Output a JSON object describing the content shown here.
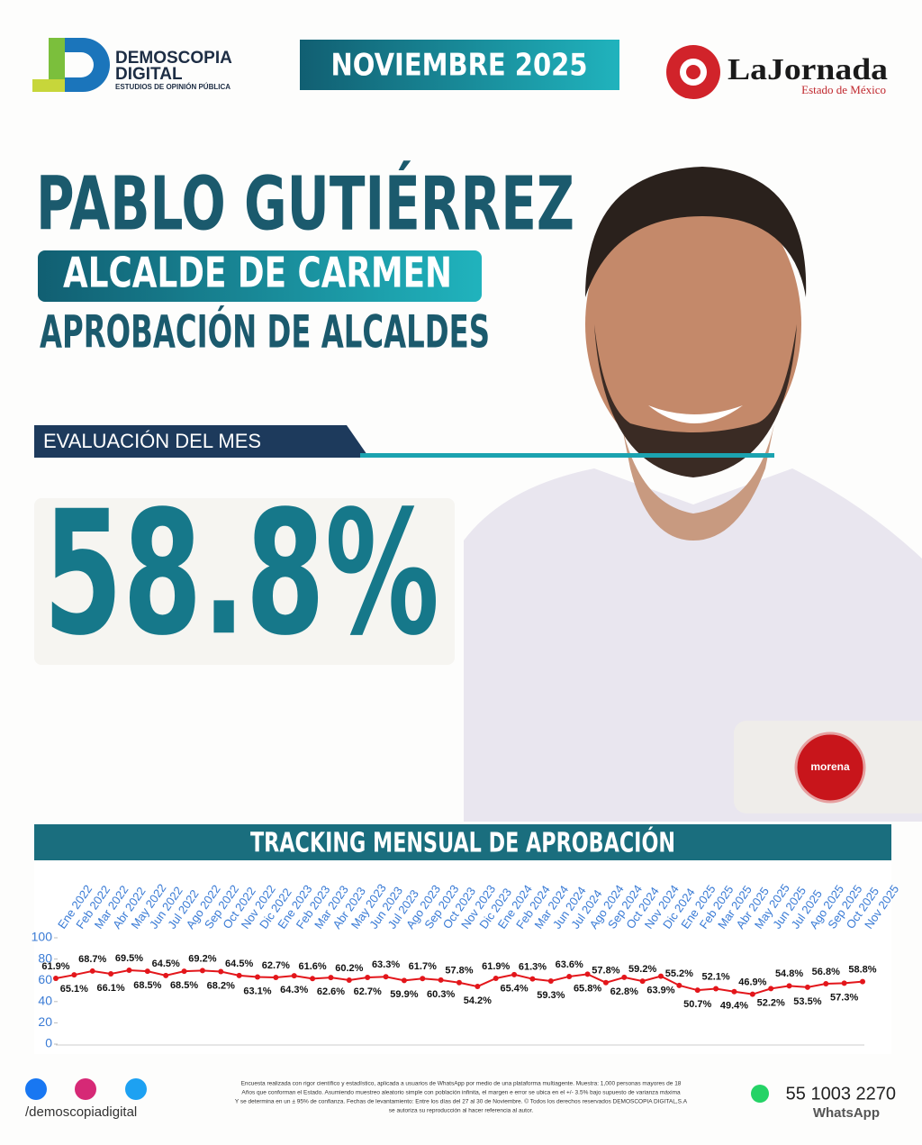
{
  "header": {
    "brand": "DEMOSCOPIA",
    "brand2": "DIGITAL",
    "brand_sub": "ESTUDIOS DE OPINIÓN PÚBLICA",
    "month": "NOVIEMBRE 2025",
    "partner": "LaJornada",
    "partner_sub": "Estado de México"
  },
  "hero": {
    "name": "PABLO GUTIÉRREZ",
    "role": "ALCALDE DE CARMEN",
    "topic": "APROBACIÓN DE ALCALDES",
    "eval_label": "EVALUACIÓN DEL MES",
    "eval_value": "58.8%",
    "party": "morena"
  },
  "chart_data": {
    "type": "line",
    "title": "TRACKING MENSUAL DE APROBACIÓN",
    "categories": [
      "Ene 2022",
      "Feb 2022",
      "Mar 2022",
      "Abr 2022",
      "May 2022",
      "Jun 2022",
      "Jul 2022",
      "Ago 2022",
      "Sep 2022",
      "Oct 2022",
      "Nov 2022",
      "Dic 2022",
      "Ene 2023",
      "Feb 2023",
      "Mar 2023",
      "Abr 2023",
      "May 2023",
      "Jun 2023",
      "Jul 2023",
      "Ago 2023",
      "Sep 2023",
      "Oct 2023",
      "Nov 2023",
      "Dic 2023",
      "Ene 2024",
      "Feb 2024",
      "Mar 2024",
      "Jun 2024",
      "Jul 2024",
      "Ago 2024",
      "Sep 2024",
      "Oct 2024",
      "Nov 2024",
      "Dic 2024",
      "Ene 2025",
      "Feb 2025",
      "Mar 2025",
      "Abr 2025",
      "May 2025",
      "Jun 2025",
      "Jul 2025",
      "Ago 2025",
      "Sep 2025",
      "Oct 2025",
      "Nov 2025"
    ],
    "values": [
      61.9,
      65.1,
      68.7,
      66.1,
      69.5,
      68.5,
      64.5,
      68.5,
      69.2,
      68.2,
      64.5,
      63.1,
      62.7,
      64.3,
      61.6,
      62.6,
      60.2,
      62.7,
      63.3,
      59.9,
      61.7,
      60.3,
      57.8,
      54.2,
      61.9,
      65.4,
      61.3,
      59.3,
      63.6,
      65.8,
      57.8,
      62.8,
      59.2,
      63.9,
      55.2,
      50.7,
      52.1,
      49.4,
      46.9,
      52.2,
      54.8,
      53.5,
      56.8,
      57.3,
      58.8
    ],
    "value_labels": [
      "61.9%",
      "65.1%",
      "68.7%",
      "66.1%",
      "69.5%",
      "68.5%",
      "64.5%",
      "68.5%",
      "69.2%",
      "68.2%",
      "64.5%",
      "63.1%",
      "62.7%",
      "64.3%",
      "61.6%",
      "62.6%",
      "60.2%",
      "62.7%",
      "63.3%",
      "59.9%",
      "61.7%",
      "60.3%",
      "57.8%",
      "54.2%",
      "61.9%",
      "65.4%",
      "61.3%",
      "59.3%",
      "63.6%",
      "65.8%",
      "57.8%",
      "62.8%",
      "59.2%",
      "63.9%",
      "55.2%",
      "50.7%",
      "52.1%",
      "49.4%",
      "46.9%",
      "52.2%",
      "54.8%",
      "53.5%",
      "56.8%",
      "57.3%",
      "58.8%"
    ],
    "color": "#e3161b",
    "ylim": [
      0,
      100
    ],
    "yticks": [
      0,
      20,
      40,
      60,
      80,
      100
    ],
    "grid": false
  },
  "footer": {
    "social": "/demoscopiadigital",
    "phone": "55 1003 2270",
    "phone_label": "WhatsApp",
    "disclaimer": [
      "Encuesta realizada con rigor científico y estadístico, aplicada a usuarios de WhatsApp por medio de una plataforma multiagente. Muestra: 1,000 personas mayores de 18",
      "Años que conforman el Estado. Asumiendo muestreo aleatorio simple con población infinita, el margen e error se ubica en el +/- 3.5% bajo supuesto de varianza máxima",
      "Y se determina en un ± 95% de confianza. Fechas de levantamiento: Entre los días del 27 al 30 de Noviembre. © Todos los derechos reservados DEMOSCOPIA DIGITAL,S.A",
      "se autoriza su reproducción al hacer referencia al autor."
    ]
  }
}
